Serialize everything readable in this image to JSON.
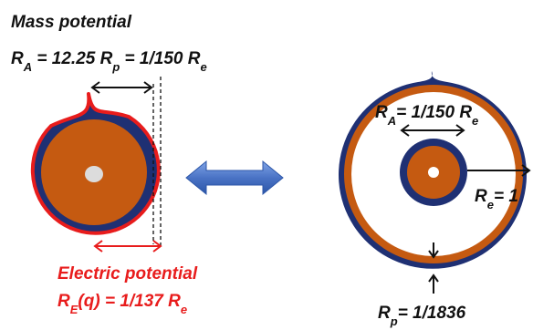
{
  "left": {
    "mass_title": "Mass potential",
    "mass_formula": {
      "r": "R",
      "sub_a": "A",
      "mid": " = 12.25 R",
      "sub_p": "p",
      "tail": " = 1/150 R",
      "sub_e": "e"
    },
    "electric_title": "Electric potential",
    "electric_formula": {
      "r": "R",
      "sub_e": "E",
      "tail": "(q) = 1/137 R",
      "sub_e2": "e"
    }
  },
  "right": {
    "ra_label": {
      "r": "R",
      "sub": "A",
      "tail": "= 1/150 R",
      "sub2": "e"
    },
    "re_label": {
      "r": "R",
      "sub": "e",
      "tail": "= 1"
    },
    "rp_label": {
      "r": "R",
      "sub": "p",
      "tail": "= 1/1836"
    }
  },
  "colors": {
    "orange": "#c55a11",
    "navy": "#1f3073",
    "red": "#e81c1c",
    "arrow_blue": "#4a73c5",
    "core": "#dcdcdc",
    "text_dark": "#111111"
  }
}
